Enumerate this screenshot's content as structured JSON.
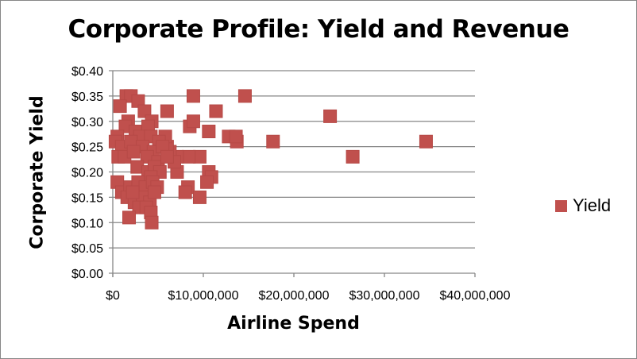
{
  "chart_data": {
    "type": "scatter",
    "title": "Corporate Profile: Yield and Revenue",
    "xlabel": "Airline Spend",
    "ylabel": "Corporate Yield",
    "xlim": [
      0,
      40000000
    ],
    "ylim": [
      0,
      0.4
    ],
    "xticks": [
      "$0",
      "$10,000,000",
      "$20,000,000",
      "$30,000,000",
      "$40,000,000"
    ],
    "yticks": [
      "$0.00",
      "$0.05",
      "$0.10",
      "$0.15",
      "$0.20",
      "$0.25",
      "$0.30",
      "$0.35",
      "$0.40"
    ],
    "grid": "horizontal",
    "legend_position": "right",
    "color": "#C0504D",
    "series": [
      {
        "name": "Yield",
        "points": [
          [
            26500000,
            0.23
          ],
          [
            24000000,
            0.31
          ],
          [
            34600000,
            0.26
          ],
          [
            17700000,
            0.26
          ],
          [
            14600000,
            0.35
          ],
          [
            11400000,
            0.32
          ],
          [
            8900000,
            0.35
          ],
          [
            10600000,
            0.28
          ],
          [
            8500000,
            0.29
          ],
          [
            8900000,
            0.3
          ],
          [
            12800000,
            0.27
          ],
          [
            13700000,
            0.26
          ],
          [
            13600000,
            0.27
          ],
          [
            6000000,
            0.32
          ],
          [
            9600000,
            0.23
          ],
          [
            8400000,
            0.23
          ],
          [
            7100000,
            0.23
          ],
          [
            10600000,
            0.2
          ],
          [
            10900000,
            0.19
          ],
          [
            10400000,
            0.18
          ],
          [
            8300000,
            0.17
          ],
          [
            8000000,
            0.16
          ],
          [
            9600000,
            0.15
          ],
          [
            7100000,
            0.2
          ],
          [
            6300000,
            0.24
          ],
          [
            6000000,
            0.25
          ],
          [
            5800000,
            0.27
          ],
          [
            6800000,
            0.22
          ],
          [
            1500000,
            0.35
          ],
          [
            2000000,
            0.35
          ],
          [
            800000.0,
            0.33
          ],
          [
            2800000,
            0.34
          ],
          [
            3500000,
            0.32
          ],
          [
            1700000,
            0.3
          ],
          [
            4300000,
            0.3
          ],
          [
            1400000,
            0.29
          ],
          [
            2500000,
            0.28
          ],
          [
            3900000,
            0.29
          ],
          [
            3000000,
            0.27
          ],
          [
            4200000,
            0.27
          ],
          [
            5100000,
            0.26
          ],
          [
            500000.0,
            0.27
          ],
          [
            300000.0,
            0.26
          ],
          [
            1000000,
            0.25
          ],
          [
            2000000,
            0.26
          ],
          [
            3300000,
            0.25
          ],
          [
            4500000,
            0.24
          ],
          [
            5500000,
            0.25
          ],
          [
            600000.0,
            0.23
          ],
          [
            1300000,
            0.23
          ],
          [
            2300000,
            0.24
          ],
          [
            3800000,
            0.23
          ],
          [
            5000000,
            0.22
          ],
          [
            6000000,
            0.23
          ],
          [
            2700000,
            0.21
          ],
          [
            3900000,
            0.2
          ],
          [
            4600000,
            0.21
          ],
          [
            5200000,
            0.2
          ],
          [
            4200000,
            0.19
          ],
          [
            500000.0,
            0.18
          ],
          [
            1000000,
            0.16
          ],
          [
            1900000,
            0.17
          ],
          [
            2800000,
            0.18
          ],
          [
            3600000,
            0.17
          ],
          [
            4400000,
            0.18
          ],
          [
            4900000,
            0.17
          ],
          [
            1600000,
            0.15
          ],
          [
            2400000,
            0.14
          ],
          [
            3300000,
            0.15
          ],
          [
            4100000,
            0.14
          ],
          [
            2900000,
            0.13
          ],
          [
            3700000,
            0.13
          ],
          [
            1800000,
            0.11
          ],
          [
            4200000,
            0.12
          ],
          [
            4300000,
            0.1
          ],
          [
            4600000,
            0.16
          ],
          [
            2200000,
            0.16
          ]
        ]
      }
    ]
  }
}
